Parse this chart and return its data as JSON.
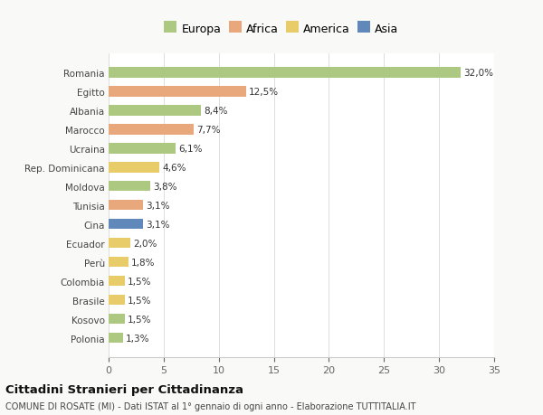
{
  "countries": [
    "Romania",
    "Egitto",
    "Albania",
    "Marocco",
    "Ucraina",
    "Rep. Dominicana",
    "Moldova",
    "Tunisia",
    "Cina",
    "Ecuador",
    "Perù",
    "Colombia",
    "Brasile",
    "Kosovo",
    "Polonia"
  ],
  "values": [
    32.0,
    12.5,
    8.4,
    7.7,
    6.1,
    4.6,
    3.8,
    3.1,
    3.1,
    2.0,
    1.8,
    1.5,
    1.5,
    1.5,
    1.3
  ],
  "labels": [
    "32,0%",
    "12,5%",
    "8,4%",
    "7,7%",
    "6,1%",
    "4,6%",
    "3,8%",
    "3,1%",
    "3,1%",
    "2,0%",
    "1,8%",
    "1,5%",
    "1,5%",
    "1,5%",
    "1,3%"
  ],
  "continents": [
    "Europa",
    "Africa",
    "Europa",
    "Africa",
    "Europa",
    "America",
    "Europa",
    "Africa",
    "Asia",
    "America",
    "America",
    "America",
    "America",
    "Europa",
    "Europa"
  ],
  "colors": {
    "Europa": "#adc981",
    "Africa": "#e8a87c",
    "America": "#e8cc6a",
    "Asia": "#6088bb"
  },
  "legend_labels": [
    "Europa",
    "Africa",
    "America",
    "Asia"
  ],
  "legend_colors": [
    "#adc981",
    "#e8a87c",
    "#e8cc6a",
    "#6088bb"
  ],
  "title": "Cittadini Stranieri per Cittadinanza",
  "subtitle": "COMUNE DI ROSATE (MI) - Dati ISTAT al 1° gennaio di ogni anno - Elaborazione TUTTITALIA.IT",
  "xlim": [
    0,
    35
  ],
  "xticks": [
    0,
    5,
    10,
    15,
    20,
    25,
    30,
    35
  ],
  "background_color": "#f9f9f7",
  "bar_background": "#ffffff"
}
